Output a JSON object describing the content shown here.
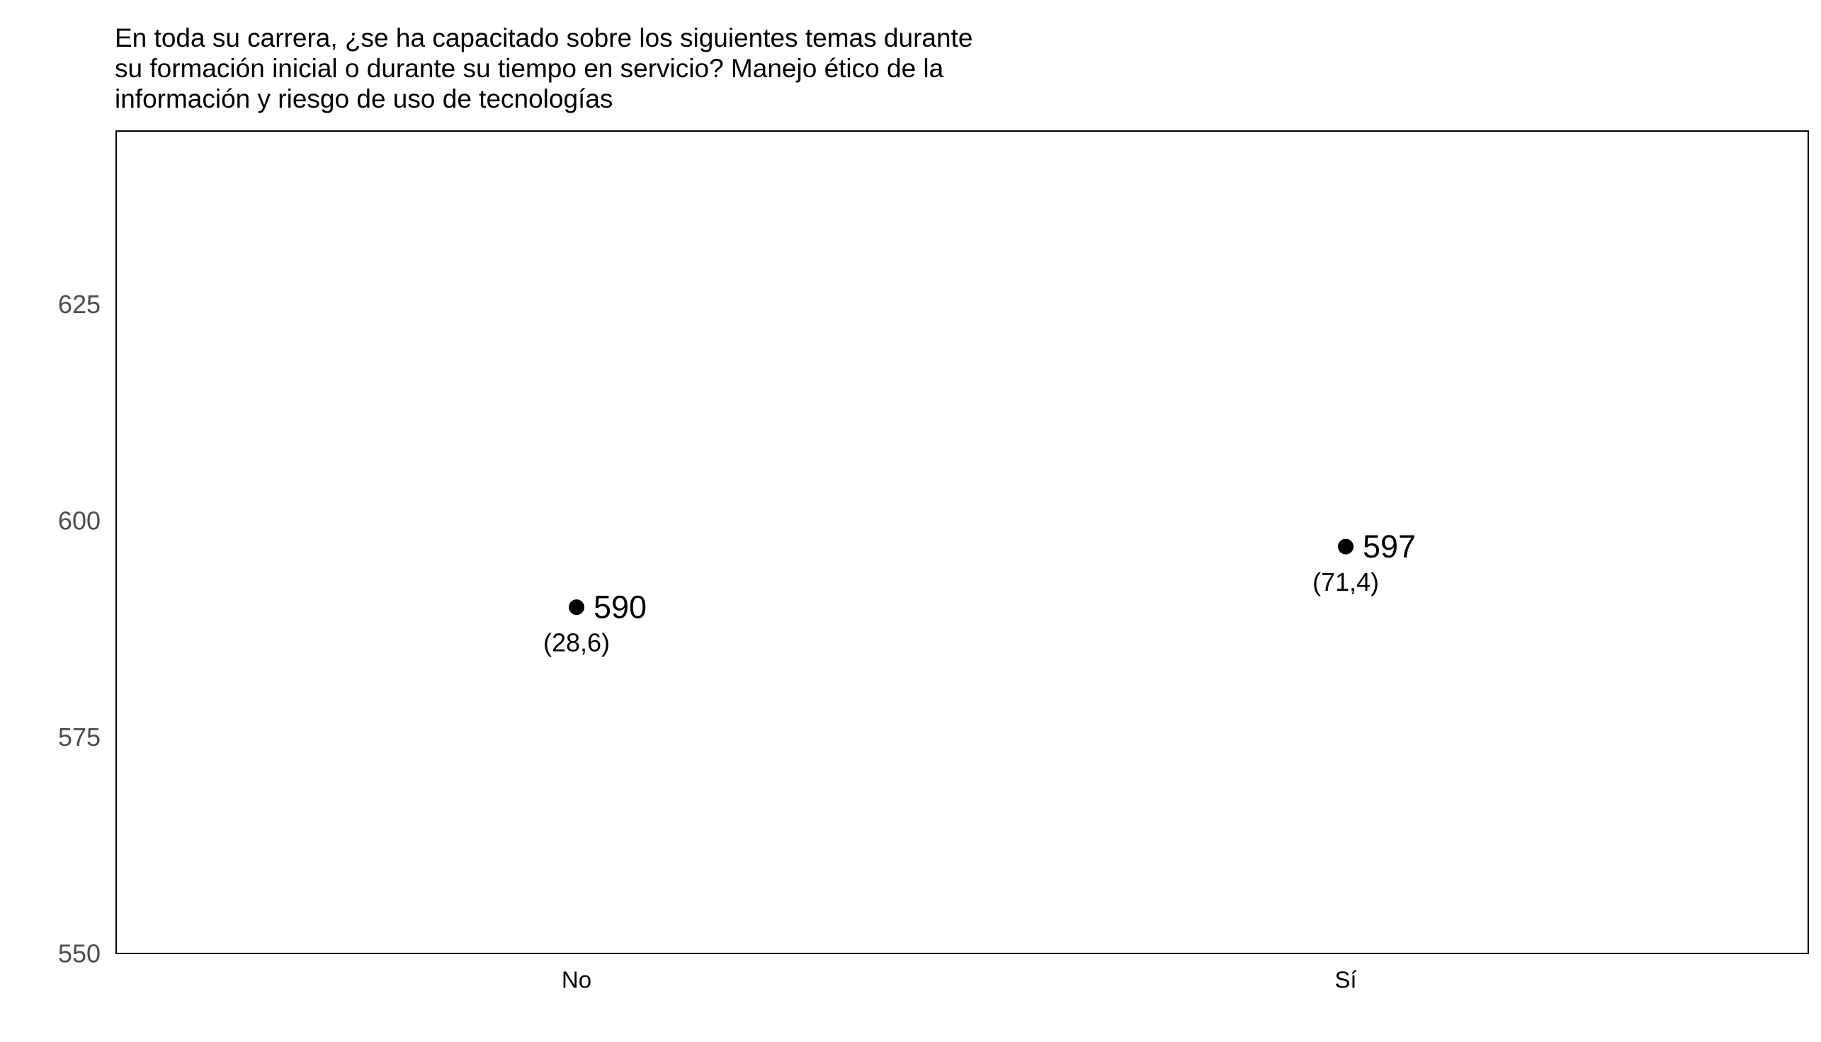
{
  "chart_data": {
    "type": "scatter",
    "title_lines": [
      "En toda su carrera, ¿se ha capacitado sobre los siguientes temas durante",
      "su formación inicial o durante su tiempo en servicio? Manejo ético de la",
      "información y riesgo de uso de tecnologías"
    ],
    "xlabel": "",
    "ylabel": "",
    "categories": [
      "No",
      "Sí"
    ],
    "values": [
      590,
      597
    ],
    "value_labels": [
      "590",
      "597"
    ],
    "percent_labels": [
      "(28,6)",
      "(71,4)"
    ],
    "ylim": [
      550,
      645
    ],
    "yticks": [
      550,
      575,
      600,
      625
    ],
    "ytick_labels": [
      "550",
      "575",
      "600",
      "625"
    ],
    "grid": false,
    "legend": "none",
    "colors": {
      "point": "#000000",
      "frame": "#000000",
      "tick_label": "#4d4d4d",
      "text": "#000000"
    }
  }
}
